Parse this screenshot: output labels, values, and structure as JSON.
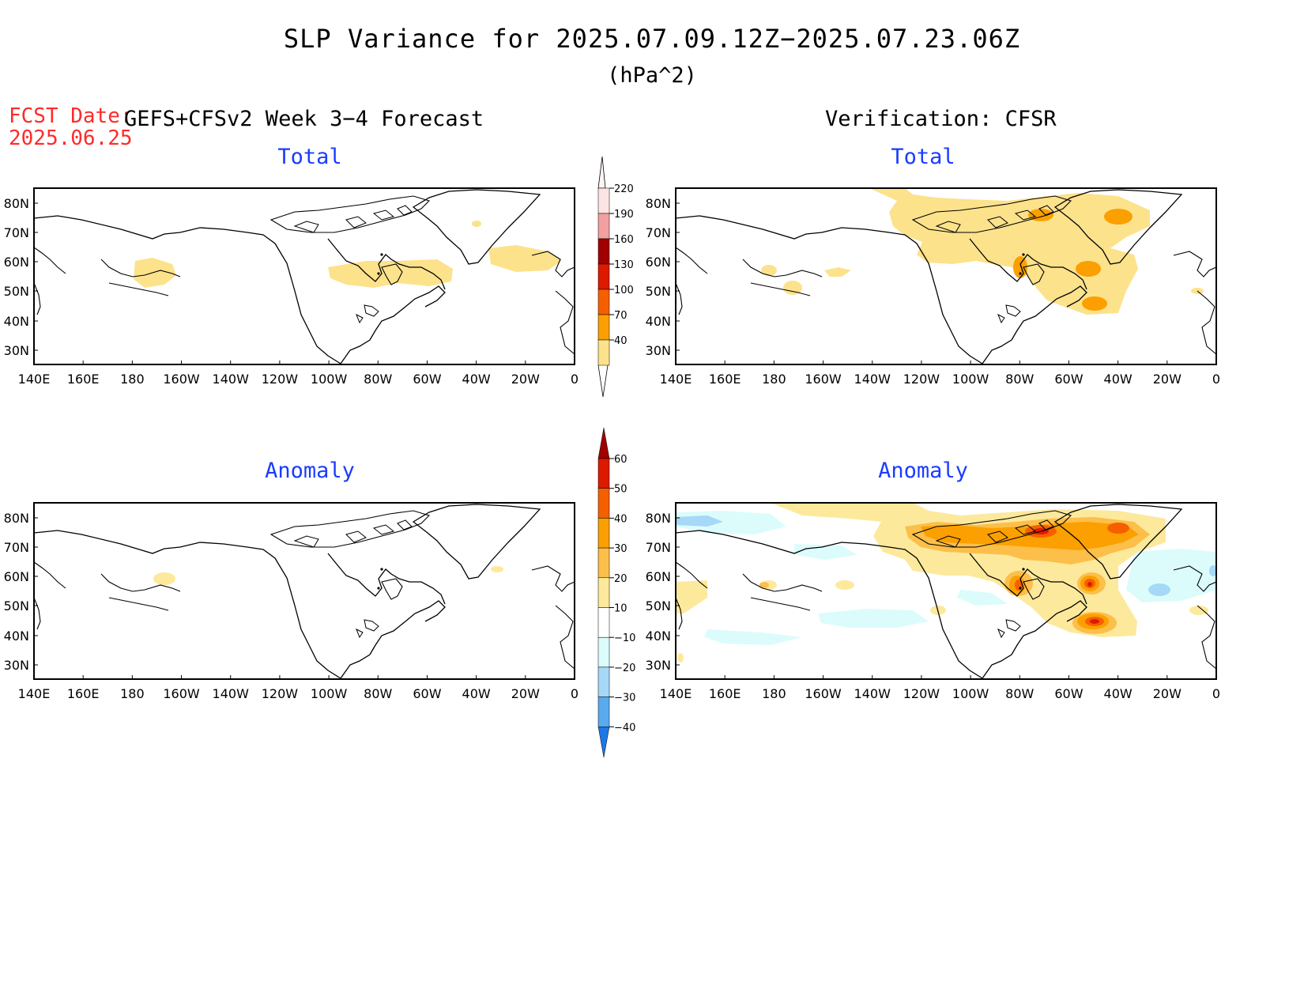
{
  "figure": {
    "title": "SLP Variance for 2025.07.09.12Z−2025.07.23.06Z",
    "units": "(hPa^2)",
    "fcst_date_label": "FCST Date:",
    "fcst_date_value": "2025.06.25",
    "left_header": "GEFS+CFSv2 Week 3−4 Forecast",
    "right_header": "Verification: CFSR"
  },
  "panels": [
    {
      "id": "forecast-total",
      "title": "Total"
    },
    {
      "id": "verification-total",
      "title": "Total"
    },
    {
      "id": "forecast-anomaly",
      "title": "Anomaly"
    },
    {
      "id": "verification-anomaly",
      "title": "Anomaly"
    }
  ],
  "axes": {
    "lon_ticks": [
      "140E",
      "160E",
      "180",
      "160W",
      "140W",
      "120W",
      "100W",
      "80W",
      "60W",
      "40W",
      "20W",
      "0"
    ],
    "lat_ticks": [
      "80N",
      "70N",
      "60N",
      "50N",
      "40N",
      "30N"
    ]
  },
  "colorbar_total": {
    "labels": [
      "220",
      "190",
      "160",
      "130",
      "100",
      "70",
      "40"
    ],
    "colors": [
      "#fce4e4",
      "#f2a0a0",
      "#a00000",
      "#dd1a00",
      "#f65f00",
      "#fba000",
      "#fde28c"
    ]
  },
  "colorbar_anomaly": {
    "labels": [
      "60",
      "50",
      "40",
      "30",
      "20",
      "10",
      "−10",
      "−20",
      "−30",
      "−40"
    ],
    "colors": [
      "#a00000",
      "#dd1a00",
      "#f65f00",
      "#fba000",
      "#fcbf4a",
      "#fde99c",
      "#ffffff",
      "#dcfcfc",
      "#a6d8f8",
      "#5aaaf0",
      "#1e78e6"
    ]
  },
  "colors": {
    "title_text": "#000000",
    "fcst_date": "#ff2a2a",
    "panel_title": "#1a3cff"
  }
}
